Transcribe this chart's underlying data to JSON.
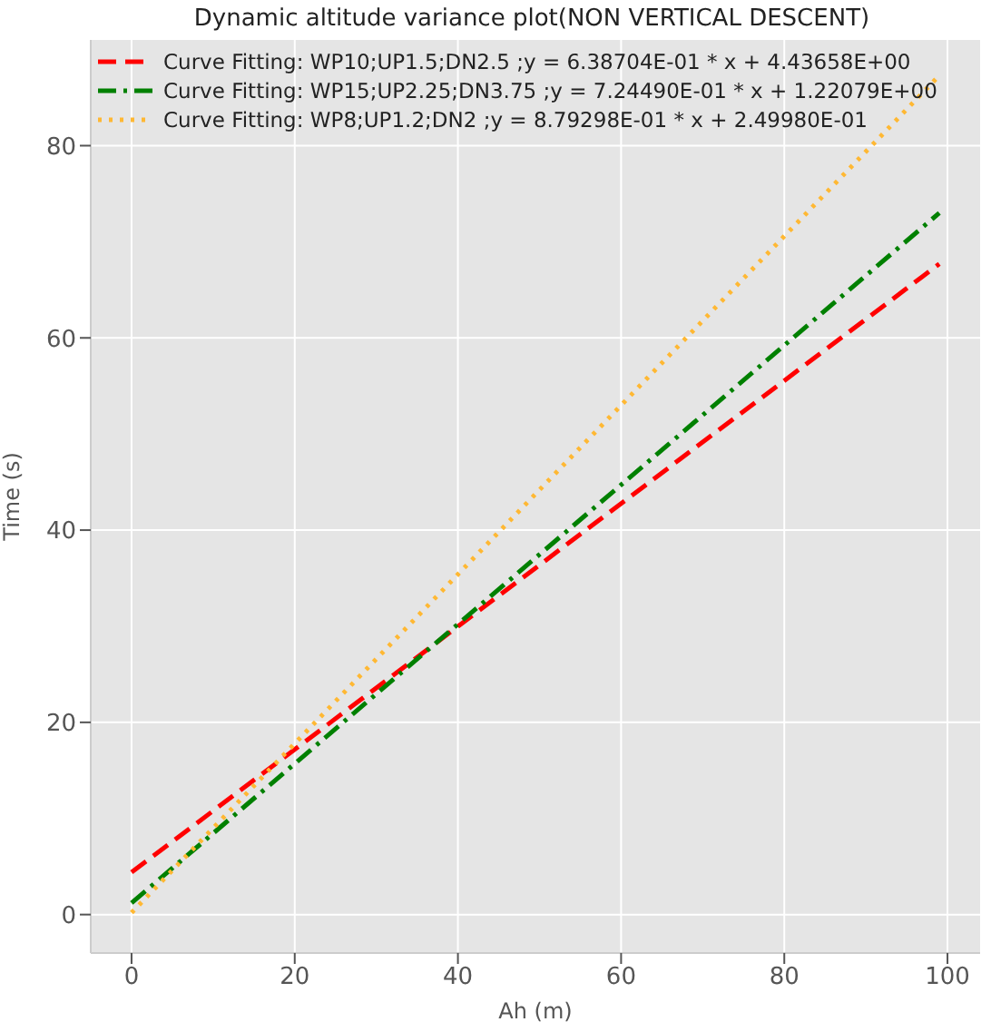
{
  "chart_data": {
    "type": "line",
    "title": "Dynamic altitude variance plot(NON VERTICAL DESCENT)",
    "xlabel": "Ah (m)",
    "ylabel": "Time (s)",
    "x": [
      0,
      99
    ],
    "series": [
      {
        "name": "Curve Fitting: WP10;UP1.5;DN2.5 ;y = 6.38704E-01 * x + 4.43658E+00",
        "color": "#ff0000",
        "values": [
          4.4,
          67.7
        ],
        "line_style": "dashed"
      },
      {
        "name": "Curve Fitting: WP15;UP2.25;DN3.75 ;y = 7.24490E-01 * x + 1.22079E+00",
        "color": "#008000",
        "values": [
          1.2,
          73.0
        ],
        "line_style": "dashdot"
      },
      {
        "name": "Curve Fitting: WP8;UP1.2;DN2 ;y = 8.79298E-01 * x + 2.49980E-01",
        "color": "#ffb833",
        "values": [
          0.2,
          87.3
        ],
        "line_style": "dotted"
      }
    ],
    "xlim": [
      -5,
      104
    ],
    "xticks": [
      0,
      20,
      40,
      60,
      80,
      100
    ],
    "ylim": [
      -4,
      91
    ],
    "yticks": [
      0,
      20,
      40,
      60,
      80
    ],
    "grid": true,
    "legend": "top left",
    "marker": "none"
  }
}
